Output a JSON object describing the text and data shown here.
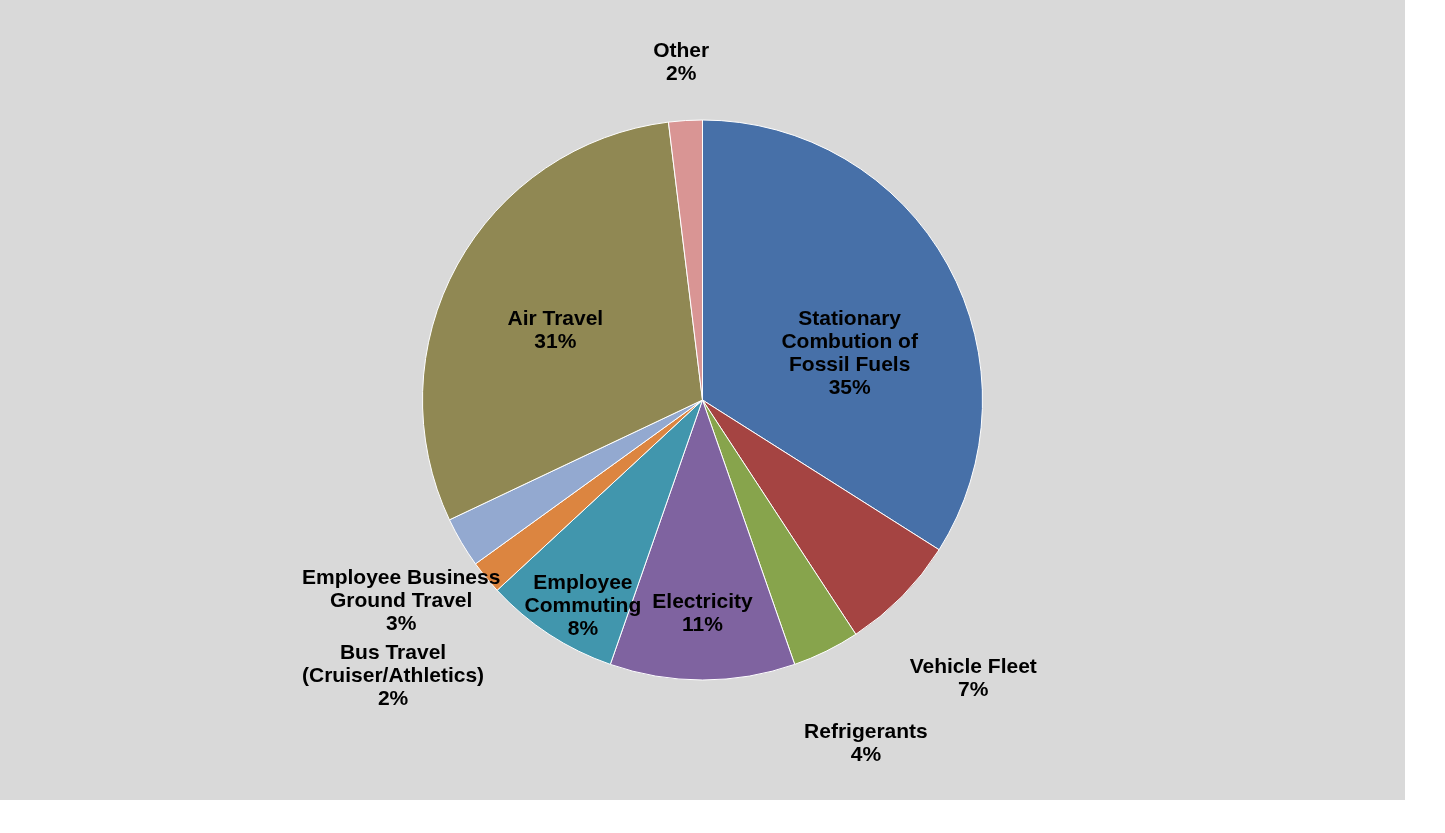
{
  "chart_data": {
    "type": "pie",
    "categories": [
      "Stationary Combution of Fossil Fuels",
      "Vehicle Fleet",
      "Refrigerants",
      "Electricity",
      "Employee Commuting",
      "Bus Travel (Cruiser/Athletics)",
      "Employee Business Ground Travel",
      "Air Travel",
      "Other"
    ],
    "values": [
      35,
      7,
      4,
      11,
      8,
      2,
      3,
      31,
      2
    ],
    "value_labels": [
      "35%",
      "7%",
      "4%",
      "11%",
      "8%",
      "2%",
      "3%",
      "31%",
      "2%"
    ],
    "colors": [
      "#4770a8",
      "#a54442",
      "#87a44c",
      "#7f63a0",
      "#4196ad",
      "#dc8540",
      "#93a9d0",
      "#908853",
      "#d99594"
    ],
    "legend": false
  }
}
